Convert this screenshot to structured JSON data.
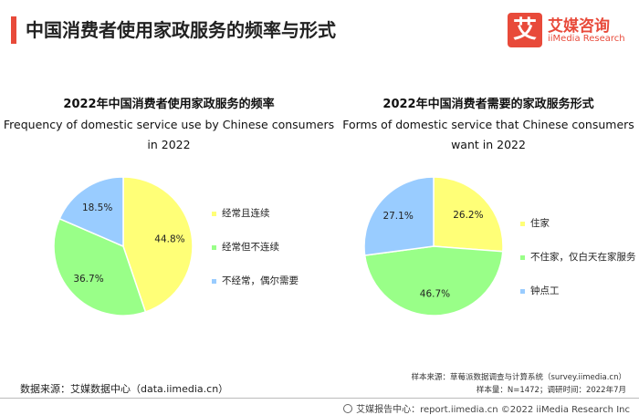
{
  "header": {
    "title": "中国消费者使用家政服务的频率与形式"
  },
  "logo": {
    "mark": "艾",
    "name_cn": "艾媒咨询",
    "name_en": "iiMedia Research"
  },
  "chart_data": [
    {
      "type": "pie",
      "title": "2022年中国消费者使用家政服务的频率",
      "subtitle": "Frequency of domestic service use by Chinese consumers in 2022",
      "categories": [
        "经常且连续",
        "经常但不连续",
        "不经常，偶尔需要"
      ],
      "values": [
        44.8,
        36.7,
        18.5
      ],
      "value_labels": [
        "44.8%",
        "36.7%",
        "18.5%"
      ],
      "colors": [
        "#ffff77",
        "#99ff88",
        "#99ccff"
      ],
      "legend_position": "right"
    },
    {
      "type": "pie",
      "title": "2022年中国消费者需要的家政服务形式",
      "subtitle": "Forms of domestic service that Chinese consumers want in 2022",
      "categories": [
        "住家",
        "不住家，仅白天在家服务",
        "钟点工"
      ],
      "values": [
        26.2,
        46.7,
        27.1
      ],
      "value_labels": [
        "26.2%",
        "46.7%",
        "27.1%"
      ],
      "colors": [
        "#ffff77",
        "#99ff88",
        "#99ccff"
      ],
      "legend_position": "right"
    }
  ],
  "source": "数据来源：艾媒数据中心（data.iimedia.cn）",
  "sample_source": "样本来源：草莓派数据调查与计算系统（survey.iimedia.cn）",
  "sample_size": "样本量：N=1472；调研时间：2022年7月",
  "footer": "艾媒报告中心：report.iimedia.cn   ©2022  iiMedia Research  Inc"
}
